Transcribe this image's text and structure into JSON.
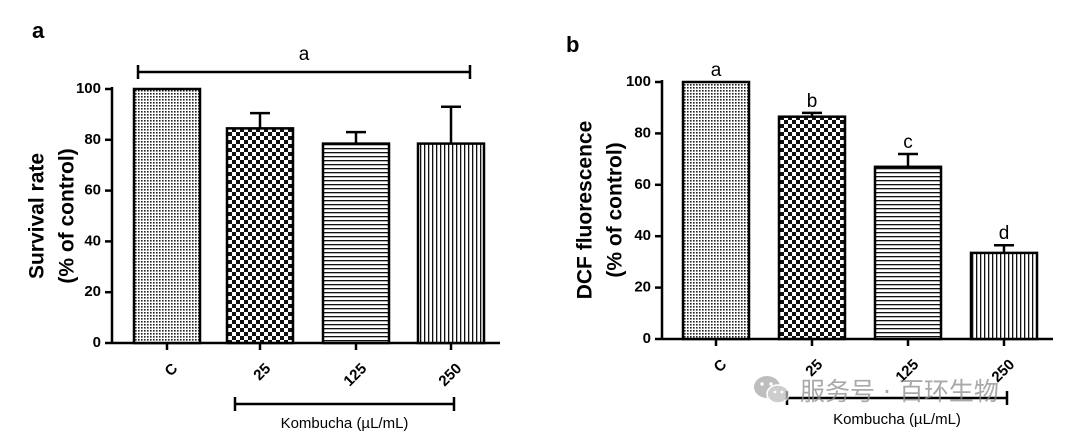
{
  "chart_data": [
    {
      "panel_label": "a",
      "type": "bar",
      "categories": [
        "C",
        "25",
        "125",
        "250"
      ],
      "values": [
        100,
        84.5,
        78.5,
        78.5
      ],
      "error_bars": [
        0,
        6,
        4.5,
        14.5
      ],
      "fill_patterns": [
        "fine-dots",
        "checkerboard",
        "horizontal-lines",
        "vertical-lines"
      ],
      "ylabel_line1": "Survival rate",
      "ylabel_line2": "(% of control)",
      "ylim": [
        0,
        100
      ],
      "yticks": [
        "0",
        "20",
        "40",
        "60",
        "80",
        "100"
      ],
      "annotations": [
        {
          "label": "a",
          "span": [
            "C",
            "250"
          ]
        }
      ],
      "letters": [],
      "group_label": "Kombucha (µL/mL)",
      "group_span": [
        "25",
        "250"
      ]
    },
    {
      "panel_label": "b",
      "type": "bar",
      "categories": [
        "C",
        "25",
        "125",
        "250"
      ],
      "values": [
        100,
        86.5,
        67,
        33.5
      ],
      "error_bars": [
        0,
        1.5,
        5,
        3
      ],
      "fill_patterns": [
        "fine-dots",
        "checkerboard",
        "horizontal-lines",
        "vertical-lines"
      ],
      "ylabel_line1": "DCF fluorescence",
      "ylabel_line2": "(% of control)",
      "ylim": [
        0,
        100
      ],
      "yticks": [
        "0",
        "20",
        "40",
        "60",
        "80",
        "100"
      ],
      "annotations": [],
      "letters": [
        "a",
        "b",
        "c",
        "d"
      ],
      "group_label": "Kombucha (µL/mL)",
      "group_span": [
        "25",
        "250"
      ]
    }
  ],
  "watermark": {
    "text": "服务号 · 百环生物",
    "icon": "wechat-logo-icon"
  }
}
